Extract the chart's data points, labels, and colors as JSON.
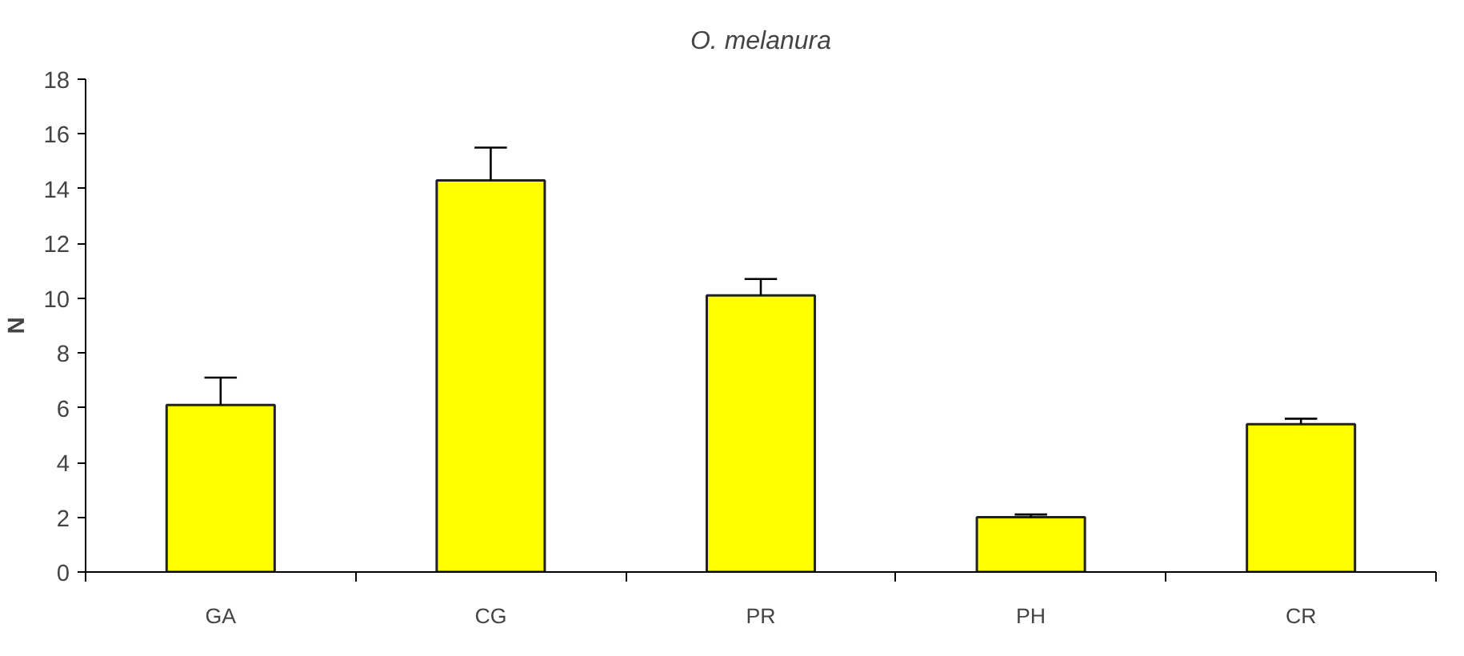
{
  "chart_data": {
    "type": "bar",
    "title": "O. melanura",
    "ylabel": "N",
    "categories": [
      "GA",
      "CG",
      "PR",
      "PH",
      "CR"
    ],
    "values": [
      6.1,
      14.3,
      10.1,
      2.0,
      5.4
    ],
    "errors": [
      [
        6.1,
        7.1
      ],
      [
        14.3,
        15.5
      ],
      [
        10.1,
        10.7
      ],
      [
        2.0,
        2.1
      ],
      [
        5.4,
        5.6
      ]
    ],
    "color": "#ffff00",
    "ylim": [
      0,
      18
    ],
    "yticks": [
      0,
      2,
      4,
      6,
      8,
      10,
      12,
      14,
      16,
      18
    ],
    "grid": false
  }
}
